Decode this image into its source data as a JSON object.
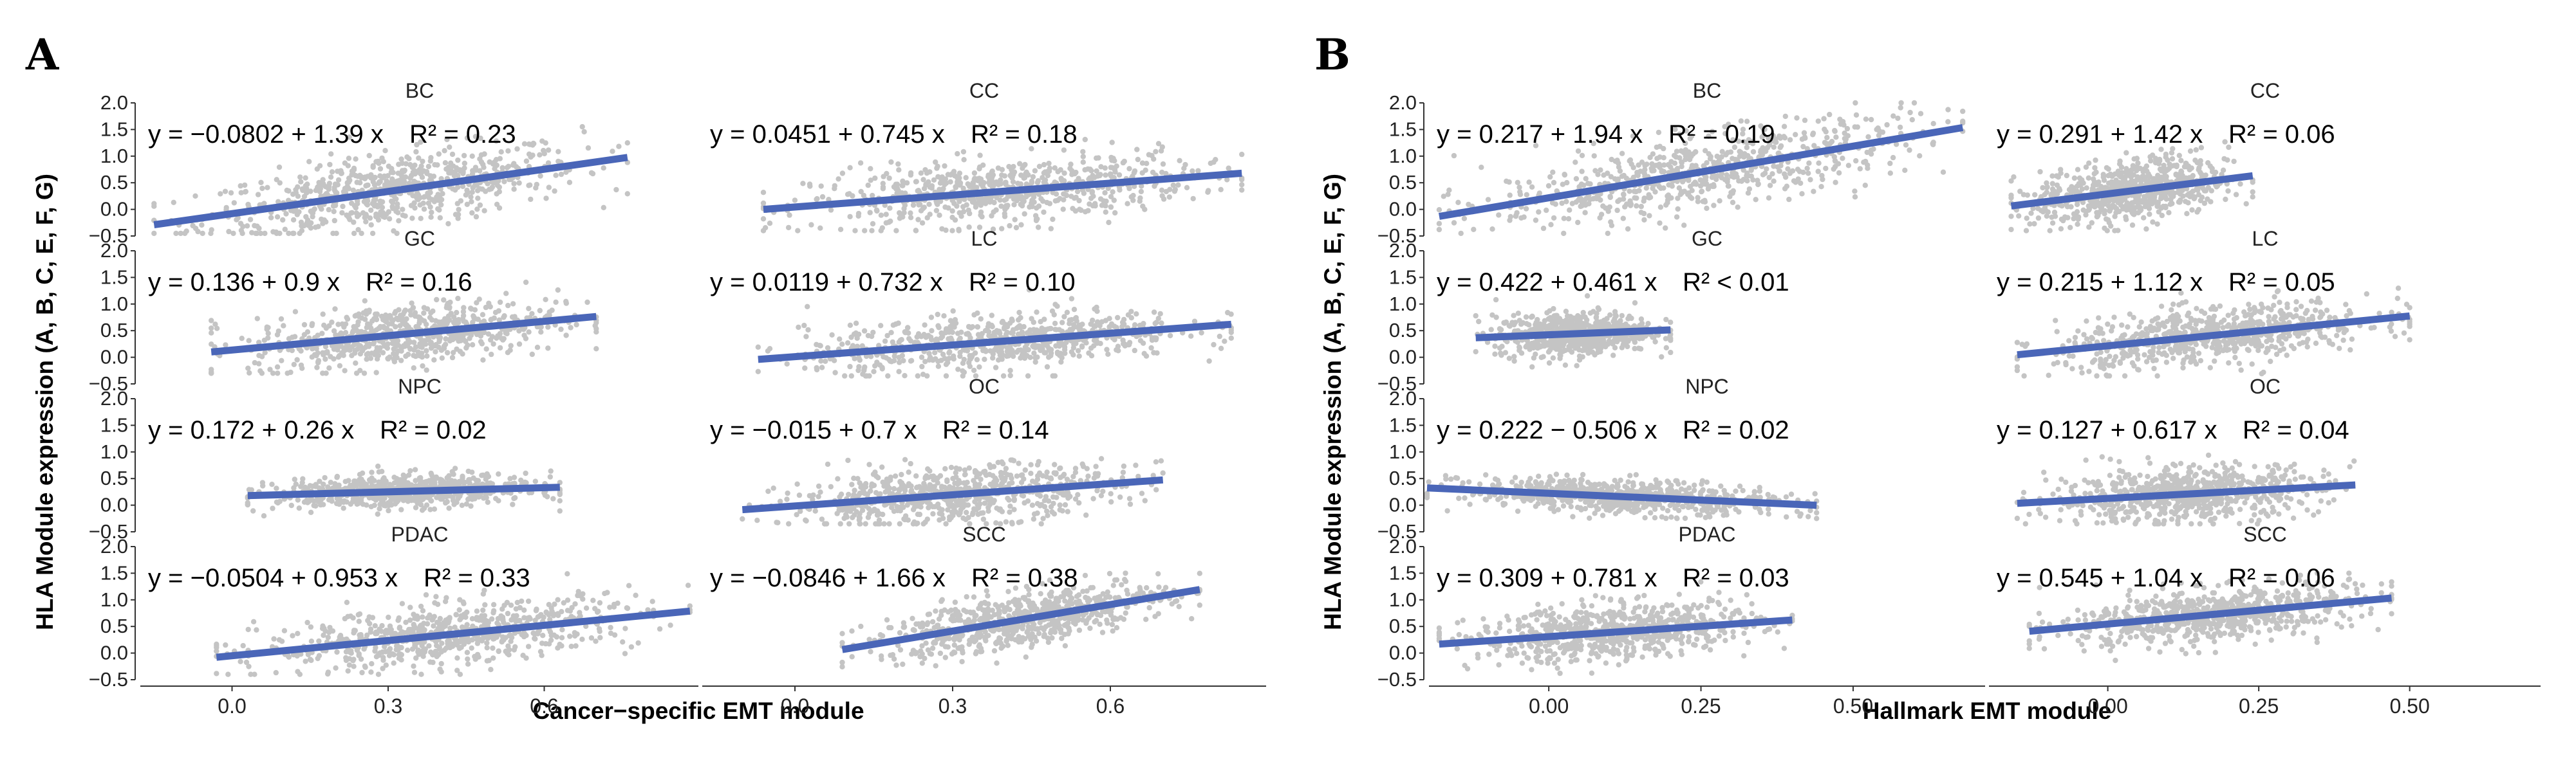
{
  "panels": [
    {
      "letter": "A",
      "ylabel": "HLA Module expression (A, B, C, E, F, G)",
      "xlabel": "Cancer−specific EMT module",
      "x_ticks": [
        0.0,
        0.3,
        0.6
      ],
      "x_tick_labels": [
        "0.0",
        "0.3",
        "0.6"
      ],
      "xlim": [
        -0.18,
        0.9
      ]
    },
    {
      "letter": "B",
      "ylabel": "HLA Module expression (A, B, C, E, F, G)",
      "xlabel": "Hallmark EMT module",
      "x_ticks": [
        0.0,
        0.25,
        0.5
      ],
      "x_tick_labels": [
        "0.00",
        "0.25",
        "0.50"
      ],
      "xlim": [
        -0.2,
        0.72
      ]
    }
  ],
  "y_ticks": [
    -0.5,
    0.0,
    0.5,
    1.0,
    1.5,
    2.0
  ],
  "y_tick_labels": [
    "−0.5",
    "0.0",
    "0.5",
    "1.0",
    "1.5",
    "2.0"
  ],
  "colors": {
    "points": "#c4c4c4",
    "line": "#4a66b8",
    "axis": "#333333"
  },
  "chart_data": [
    {
      "type": "scatter",
      "panel": "A",
      "xlabel": "Cancer−specific EMT module",
      "ylabel": "HLA Module expression (A, B, C, E, F, G)",
      "ylim": [
        -0.55,
        2.1
      ],
      "facets": [
        {
          "name": "BC",
          "equation": "y = −0.0802 + 1.39 x",
          "r2": "R² = 0.23",
          "intercept": -0.0802,
          "slope": 1.39,
          "x_range": [
            -0.15,
            0.76
          ],
          "points_y_range": [
            -0.45,
            2.0
          ]
        },
        {
          "name": "CC",
          "equation": "y = 0.0451 + 0.745 x",
          "r2": "R² = 0.18",
          "intercept": 0.0451,
          "slope": 0.745,
          "x_range": [
            -0.06,
            0.85
          ],
          "points_y_range": [
            -0.4,
            1.7
          ]
        },
        {
          "name": "GC",
          "equation": "y = 0.136 + 0.9 x",
          "r2": "R² = 0.16",
          "intercept": 0.136,
          "slope": 0.9,
          "x_range": [
            -0.04,
            0.7
          ],
          "points_y_range": [
            -0.3,
            1.7
          ]
        },
        {
          "name": "LC",
          "equation": "y = 0.0119 + 0.732 x",
          "r2": "R² = 0.10",
          "intercept": 0.0119,
          "slope": 0.732,
          "x_range": [
            -0.07,
            0.83
          ],
          "points_y_range": [
            -0.35,
            1.5
          ]
        },
        {
          "name": "NPC",
          "equation": "y = 0.172 + 0.26 x",
          "r2": "R² = 0.02",
          "intercept": 0.172,
          "slope": 0.26,
          "x_range": [
            0.03,
            0.63
          ],
          "points_y_range": [
            -0.2,
            0.85
          ]
        },
        {
          "name": "OC",
          "equation": "y = −0.015 + 0.7 x",
          "r2": "R² = 0.14",
          "intercept": -0.015,
          "slope": 0.7,
          "x_range": [
            -0.1,
            0.7
          ],
          "points_y_range": [
            -0.35,
            1.5
          ]
        },
        {
          "name": "PDAC",
          "equation": "y = −0.0504 + 0.953 x",
          "r2": "R² = 0.33",
          "intercept": -0.0504,
          "slope": 0.953,
          "x_range": [
            -0.03,
            0.88
          ],
          "points_y_range": [
            -0.4,
            1.6
          ]
        },
        {
          "name": "SCC",
          "equation": "y = −0.0846 + 1.66 x",
          "r2": "R² = 0.38",
          "intercept": -0.0846,
          "slope": 1.66,
          "x_range": [
            0.09,
            0.77
          ],
          "points_y_range": [
            -0.3,
            1.5
          ]
        }
      ]
    },
    {
      "type": "scatter",
      "panel": "B",
      "xlabel": "Hallmark EMT module",
      "ylabel": "HLA Module expression (A, B, C, E, F, G)",
      "ylim": [
        -0.55,
        2.1
      ],
      "facets": [
        {
          "name": "BC",
          "equation": "y = 0.217 + 1.94 x",
          "r2": "R² = 0.19",
          "intercept": 0.217,
          "slope": 1.94,
          "x_range": [
            -0.18,
            0.68
          ],
          "points_y_range": [
            -0.45,
            2.0
          ]
        },
        {
          "name": "CC",
          "equation": "y = 0.291 + 1.42 x",
          "r2": "R² = 0.06",
          "intercept": 0.291,
          "slope": 1.42,
          "x_range": [
            -0.16,
            0.24
          ],
          "points_y_range": [
            -0.4,
            1.7
          ]
        },
        {
          "name": "GC",
          "equation": "y = 0.422 + 0.461 x",
          "r2": "R² < 0.01",
          "intercept": 0.422,
          "slope": 0.461,
          "x_range": [
            -0.12,
            0.2
          ],
          "points_y_range": [
            -0.2,
            1.2
          ]
        },
        {
          "name": "LC",
          "equation": "y = 0.215 + 1.12 x",
          "r2": "R² = 0.05",
          "intercept": 0.215,
          "slope": 1.12,
          "x_range": [
            -0.15,
            0.5
          ],
          "points_y_range": [
            -0.35,
            1.5
          ]
        },
        {
          "name": "NPC",
          "equation": "y = 0.222 − 0.506 x",
          "r2": "R² = 0.02",
          "intercept": 0.222,
          "slope": -0.506,
          "x_range": [
            -0.2,
            0.44
          ],
          "points_y_range": [
            -0.25,
            0.85
          ]
        },
        {
          "name": "OC",
          "equation": "y = 0.127 + 0.617 x",
          "r2": "R² = 0.04",
          "intercept": 0.127,
          "slope": 0.617,
          "x_range": [
            -0.15,
            0.41
          ],
          "points_y_range": [
            -0.35,
            1.5
          ]
        },
        {
          "name": "PDAC",
          "equation": "y = 0.309 + 0.781 x",
          "r2": "R² = 0.03",
          "intercept": 0.309,
          "slope": 0.781,
          "x_range": [
            -0.18,
            0.4
          ],
          "points_y_range": [
            -0.4,
            1.4
          ]
        },
        {
          "name": "SCC",
          "equation": "y = 0.545 + 1.04 x",
          "r2": "R² = 0.06",
          "intercept": 0.545,
          "slope": 1.04,
          "x_range": [
            -0.13,
            0.47
          ],
          "points_y_range": [
            -0.3,
            1.5
          ]
        }
      ]
    }
  ]
}
